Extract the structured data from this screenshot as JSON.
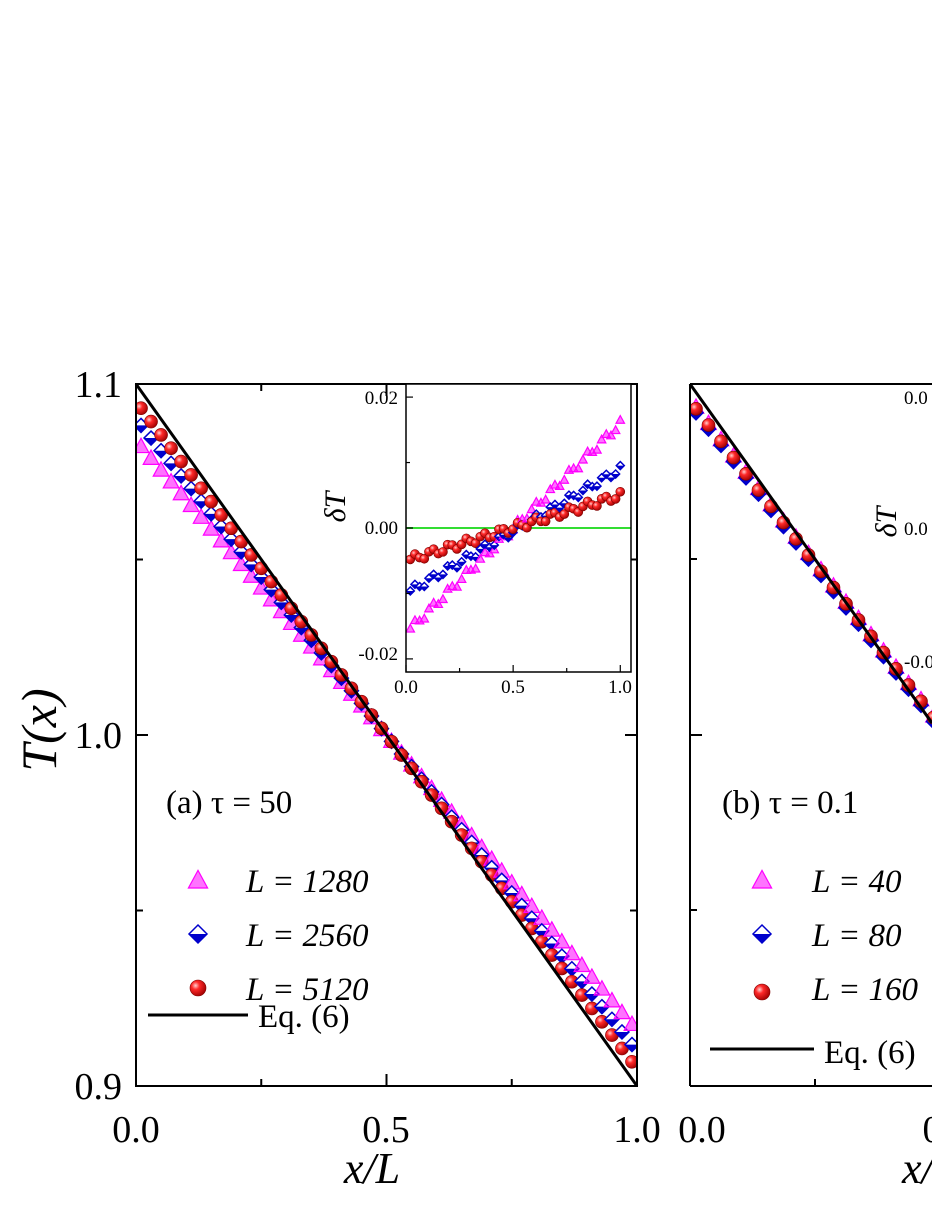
{
  "chart_data": [
    {
      "panel": "a",
      "type": "scatter",
      "annotation": "(a) τ = 50",
      "xlabel": "x/L",
      "ylabel": "T(x)",
      "xlim": [
        0.0,
        1.0
      ],
      "ylim": [
        0.9,
        1.1
      ],
      "xticks": [
        "0.0",
        "0.5",
        "1.0"
      ],
      "yticks": [
        "0.9",
        "1.0",
        "1.1"
      ],
      "legend_position": "bottom-left",
      "series": [
        {
          "name": "L = 1280",
          "marker": "triangle",
          "color": "#ff00ff",
          "fit": {
            "intercept": 1.084,
            "slope": -0.168
          }
        },
        {
          "name": "L = 2560",
          "marker": "diamond",
          "color": "#0000cc",
          "fit": {
            "intercept": 1.09,
            "slope": -0.18
          }
        },
        {
          "name": "L = 5120",
          "marker": "sphere",
          "color": "#e00000",
          "fit": {
            "intercept": 1.095,
            "slope": -0.19
          }
        },
        {
          "name": "Eq. (6)",
          "marker": "line",
          "color": "#000000",
          "x": [
            0.0,
            1.0
          ],
          "y": [
            1.1,
            0.9
          ]
        }
      ],
      "inset": {
        "ylabel": "δT",
        "xlim": [
          0.0,
          1.05
        ],
        "ylim": [
          -0.022,
          0.022
        ],
        "xticks": [
          "0.0",
          "0.5",
          "1.0"
        ],
        "yticks": [
          "-0.02",
          "0.00",
          "0.02"
        ],
        "reference_line": {
          "y": 0.0,
          "color": "#33dd33"
        },
        "series": [
          {
            "name": "L = 1280",
            "fit": {
              "intercept": -0.016,
              "slope": 0.032
            }
          },
          {
            "name": "L = 2560",
            "fit": {
              "intercept": -0.01,
              "slope": 0.019
            }
          },
          {
            "name": "L = 5120",
            "fit": {
              "intercept": -0.005,
              "slope": 0.01
            }
          }
        ]
      }
    },
    {
      "panel": "b",
      "type": "scatter",
      "annotation": "(b) τ = 0.1",
      "xlabel": "x/",
      "xlim": [
        0.0,
        1.0
      ],
      "ylim": [
        0.9,
        1.1
      ],
      "xticks": [
        "0.0",
        "0"
      ],
      "legend_position": "bottom-left",
      "series": [
        {
          "name": "L = 40",
          "marker": "triangle",
          "color": "#ff00ff"
        },
        {
          "name": "L = 80",
          "marker": "diamond",
          "color": "#0000cc"
        },
        {
          "name": "L = 160",
          "marker": "sphere",
          "color": "#e00000"
        },
        {
          "name": "Eq. (6)",
          "marker": "line",
          "color": "#000000"
        }
      ],
      "inset": {
        "ylabel": "δT",
        "yticks_visible": [
          "0.0",
          "0.0",
          "-0.0"
        ]
      }
    }
  ]
}
